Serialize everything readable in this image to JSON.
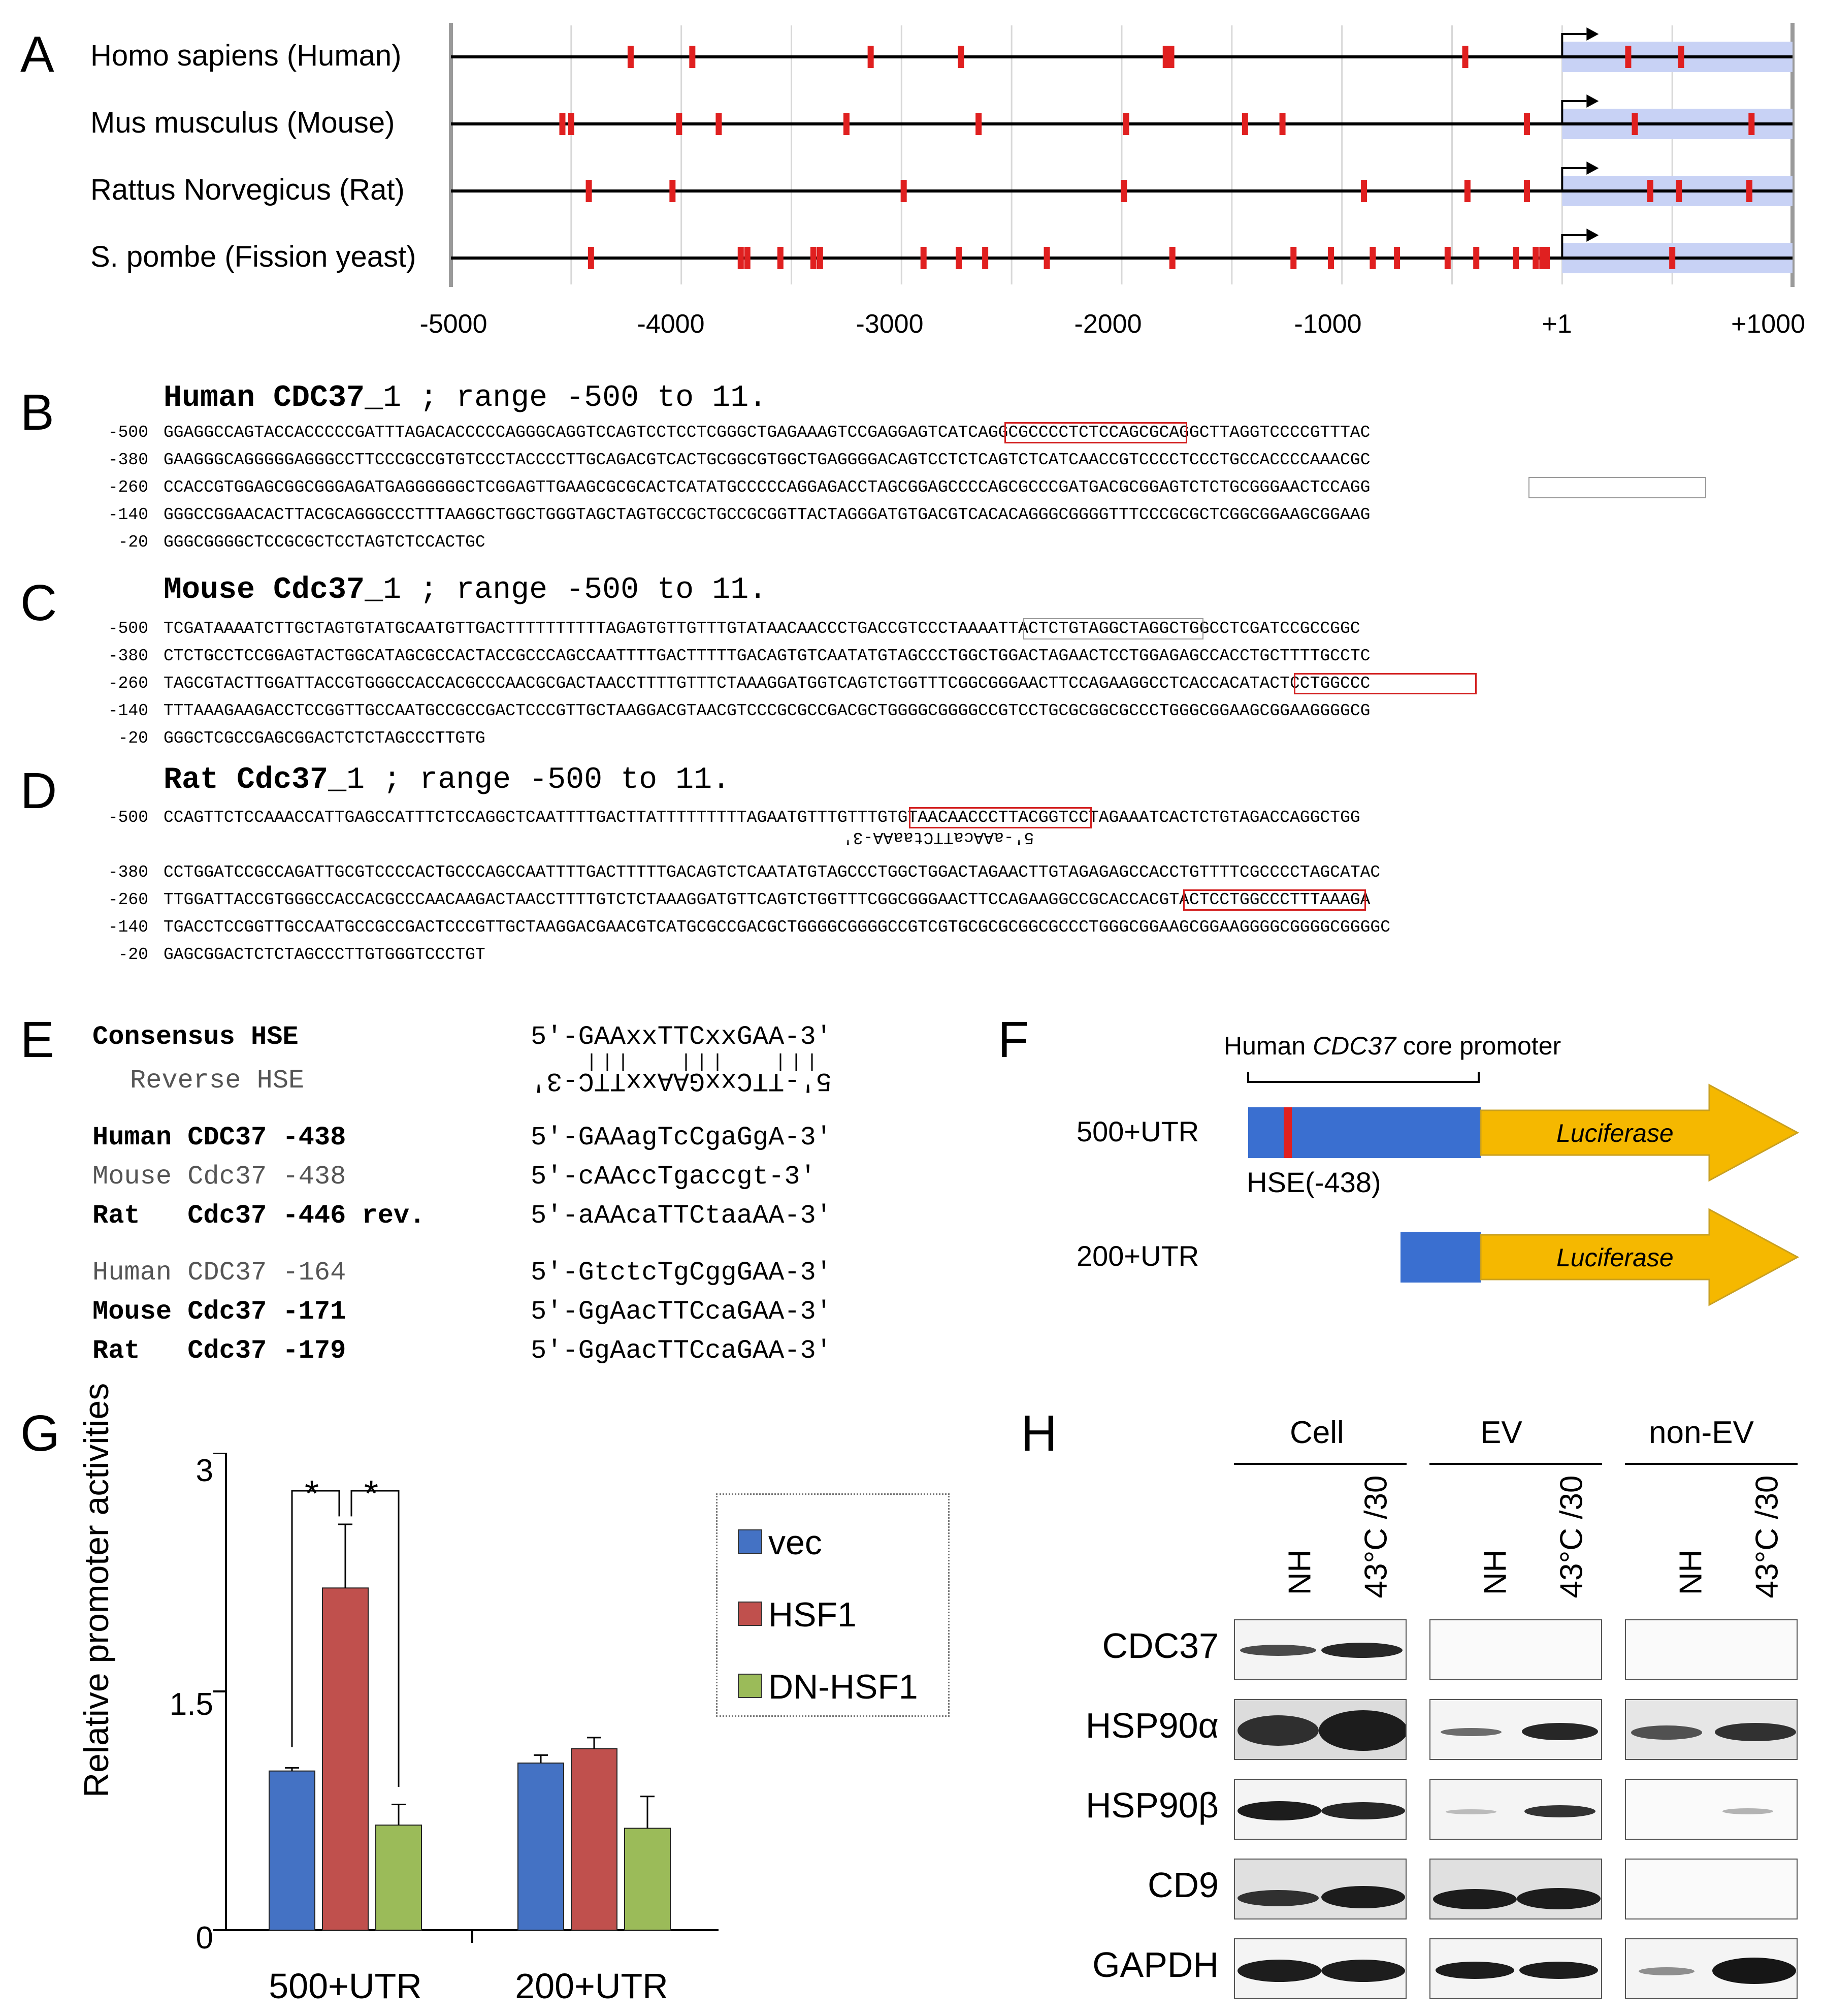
{
  "panel_labels": {
    "a": "A",
    "b": "B",
    "c": "C",
    "d": "D",
    "e": "E",
    "f": "F",
    "g": "G",
    "h": "H"
  },
  "panel_a": {
    "species": [
      "Homo sapiens (Human)",
      "Mus musculus (Mouse)",
      "Rattus Norvegicus (Rat)",
      "S. pombe (Fission yeast)"
    ],
    "axis_ticks": [
      "-5000",
      "-4000",
      "-3000",
      "-2000",
      "-1000",
      "+1",
      "+1000"
    ],
    "marker_color": "#e02020",
    "utr_color": "#c8d2f5"
  },
  "panel_b": {
    "title_gene": "Human CDC37",
    "title_rest": "_1 ; range -500 to 11.",
    "rows": [
      {
        "pos": "-500",
        "seq": "GGAGGCCAGTACCACCCCCGATTTAGACACCCCCAGGGCAGGTCCAGTCCTCCTCGGGCTGAGAAAGTCCGAGGAGTCATCAGGCGCCCCTCTCCAGCGCAGGCTTAGGTCCCCGTTTAC"
      },
      {
        "pos": "-380",
        "seq": "GAAGGGCAGGGGGAGGGCCTTCCCGCCGTGTCCCTACCCCTTGCAGACGTCACTGCGGCGTGGCTGAGGGGACAGTCCTCTCAGTCTCATCAACCGTCCCCTCCCTGCCACCCCAAACGC"
      },
      {
        "pos": "-260",
        "seq": "CCACCGTGGAGCGGCGGGAGATGAGGGGGGCTCGGAGTTGAAGCGCGCACTCATATGCCCCCAGGAGACCTAGCGGAGCCCCAGCGCCCGATGACGCGGAGTCTCTGCGGGAACTCCAGG"
      },
      {
        "pos": "-140",
        "seq": "GGGCCGGAACACTTACGCAGGGCCCTTTAAGGCTGGCTGGGTAGCTAGTGCCGCTGCCGCGGTTACTAGGGATGTGACGTCACACAGGGCGGGGTTTCCCGCGCTCGGCGGAAGCGGAAG"
      },
      {
        "pos": "-20",
        "seq": "GGGCGGGGCTCCGCGCTCCTAGTCTCCACTGC"
      }
    ]
  },
  "panel_c": {
    "title_gene": "Mouse Cdc37",
    "title_rest": "_1 ; range -500 to 11.",
    "rows": [
      {
        "pos": "-500",
        "seq": "TCGATAAAATCTTGCTAGTGTATGCAATGTTGACTTTTTTTTTTAGAGTGTTGTTTGTATAACAACCCTGACCGTCCCTAAAATTACTCTGTAGGCTAGGCTGGCCTCGATCCGCCGGC"
      },
      {
        "pos": "-380",
        "seq": "CTCTGCCTCCGGAGTACTGGCATAGCGCCACTACCGCCCAGCCAATTTTGACTTTTTGACAGTGTCAATATGTAGCCCTGGCTGGACTAGAACTCCTGGAGAGCCACCTGCTTTTGCCTC"
      },
      {
        "pos": "-260",
        "seq": "TAGCGTACTTGGATTACCGTGGGCCACCACGCCCAACGCGACTAACCTTTTGTTTCTAAAGGATGGTCAGTCTGGTTTCGGCGGGAACTTCCAGAAGGCCTCACCACATACTCCTGGCCC"
      },
      {
        "pos": "-140",
        "seq": "TTTAAAGAAGACCTCCGGTTGCCAATGCCGCCGACTCCCGTTGCTAAGGACGTAACGTCCCGCGCCGACGCTGGGGCGGGGCCGTCCTGCGCGGCGCCCTGGGCGGAAGCGGAAGGGGCG"
      },
      {
        "pos": "-20",
        "seq": "GGGCTCGCCGAGCGGACTCTCTAGCCCTTGTG"
      }
    ]
  },
  "panel_d": {
    "title_gene": "Rat Cdc37",
    "title_rest": "_1 ; range -500 to 11.",
    "rows": [
      {
        "pos": "-500",
        "seq": "CCAGTTCTCCAAACCATTGAGCCATTTCTCCAGGCTCAATTTTGACTTATTTTTTTTTAGAATGTTTGTTTGTGTAACAACCCTTACGGTCCTAGAAATCACTCTGTAGACCAGGCTGG"
      },
      {
        "pos": "-380",
        "seq": "CCTGGATCCGCCAGATTGCGTCCCCACTGCCCAGCCAATTTTGACTTTTTGACAGTCTCAATATGTAGCCCTGGCTGGACTAGAACTTGTAGAGAGCCACCTGTTTTCGCCCCTAGCATAC"
      },
      {
        "pos": "-260",
        "seq": "TTGGATTACCGTGGGCCACCACGCCCAACAAGACTAACCTTTTGTCTCTAAAGGATGTTCAGTCTGGTTTCGGCGGGAACTTCCAGAAGGCCGCACCACGTACTCCTGGCCCTTTAAAGA"
      },
      {
        "pos": "-140",
        "seq": "TGACCTCCGGTTGCCAATGCCGCCGACTCCCGTTGCTAAGGACGAACGTCATGCGCCGACGCTGGGGCGGGGCCGTCGTGCGCGCGGCGCCCTGGGCGGAAGCGGAAGGGGCGGGGCGGGGC"
      },
      {
        "pos": "-20",
        "seq": "GAGCGGACTCTCTAGCCCTTGTGGGTCCCTGT"
      }
    ],
    "reverse_note": "5'-aAAcaTTCtaaAA-3'"
  },
  "panel_e": {
    "consensus_label": "Consensus HSE",
    "consensus_seq": "5'-GAAxxTTCxxGAA-3'",
    "reverse_label": "Reverse HSE",
    "reverse_seq": "5'-TTCxxGAAxxTTC-3'",
    "rows_1": [
      {
        "label": "Human CDC37 -438",
        "seq": "5'-GAAagTcCgaGgA-3'",
        "bold": true
      },
      {
        "label": "Mouse Cdc37 -438",
        "seq": "5'-cAAccTgaccgt-3'",
        "bold": false
      },
      {
        "label": "Rat   Cdc37 -446 rev.",
        "seq": "5'-aAAcaTTCtaaAA-3'",
        "bold": true
      }
    ],
    "rows_2": [
      {
        "label": "Human CDC37 -164",
        "seq": "5'-GtctcTgCggGAA-3'",
        "bold": false
      },
      {
        "label": "Mouse Cdc37 -171",
        "seq": "5'-GgAacTTCcaGAA-3'",
        "bold": true
      },
      {
        "label": "Rat   Cdc37 -179",
        "seq": "5'-GgAacTTCcaGAA-3'",
        "bold": true
      }
    ]
  },
  "panel_f": {
    "core_promoter_prefix": "Human ",
    "core_promoter_gene": "CDC37",
    "core_promoter_suffix": " core promoter",
    "construct_1": "500+UTR",
    "construct_2": "200+UTR",
    "hse_label": "HSE(-438)",
    "luciferase": "Luciferase",
    "promoter_color": "#3a6fd0",
    "luciferase_color": "#f5b800",
    "hse_color": "#e02020"
  },
  "chart_data": {
    "type": "bar",
    "title": "",
    "ylabel": "Relative promoter activities",
    "xlabel": "",
    "ylim": [
      0,
      3
    ],
    "yticks": [
      "0",
      "1.5",
      "3"
    ],
    "categories": [
      "500+UTR",
      "200+UTR"
    ],
    "series": [
      {
        "name": "vec",
        "color": "#4472c4",
        "values": [
          1.0,
          1.05
        ],
        "errors": [
          0.02,
          0.05
        ]
      },
      {
        "name": "HSF1",
        "color": "#c0504d",
        "values": [
          2.15,
          1.14
        ],
        "errors": [
          0.4,
          0.07
        ]
      },
      {
        "name": "DN-HSF1",
        "color": "#9bbb59",
        "values": [
          0.66,
          0.64
        ],
        "errors": [
          0.13,
          0.2
        ]
      }
    ],
    "significance": [
      "*",
      "*"
    ],
    "legend_position": "right"
  },
  "panel_h": {
    "groups": [
      "Cell",
      "EV",
      "non-EV"
    ],
    "conditions": [
      "NH",
      "43°C /30"
    ],
    "proteins": [
      "CDC37",
      "HSP90α",
      "HSP90β",
      "CD9",
      "GAPDH"
    ]
  }
}
